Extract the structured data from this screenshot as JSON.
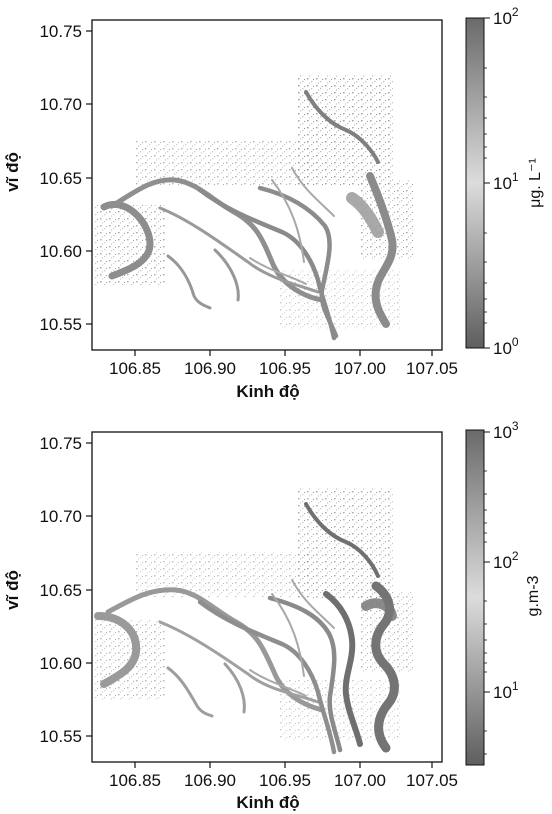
{
  "panels": [
    {
      "xlabel": "Kinh độ",
      "ylabel": "vĩ độ",
      "x_ticks": [
        "106.85",
        "106.90",
        "106.95",
        "107.00",
        "107.05"
      ],
      "y_ticks": [
        "10.75",
        "10.70",
        "10.65",
        "10.60",
        "10.55"
      ],
      "colorbar": {
        "label": "μg. L⁻¹",
        "scale": "log",
        "ticks": [
          {
            "base": "10",
            "exp": "2"
          },
          {
            "base": "10",
            "exp": "1"
          },
          {
            "base": "10",
            "exp": "0"
          }
        ]
      }
    },
    {
      "xlabel": "Kinh độ",
      "ylabel": "vĩ độ",
      "x_ticks": [
        "106.85",
        "106.90",
        "106.95",
        "107.00",
        "107.05"
      ],
      "y_ticks": [
        "10.75",
        "10.70",
        "10.65",
        "10.60",
        "10.55"
      ],
      "colorbar": {
        "label": "g.m-3",
        "scale": "log",
        "ticks": [
          {
            "base": "10",
            "exp": "3"
          },
          {
            "base": "10",
            "exp": "2"
          },
          {
            "base": "10",
            "exp": "1"
          }
        ]
      }
    }
  ]
}
